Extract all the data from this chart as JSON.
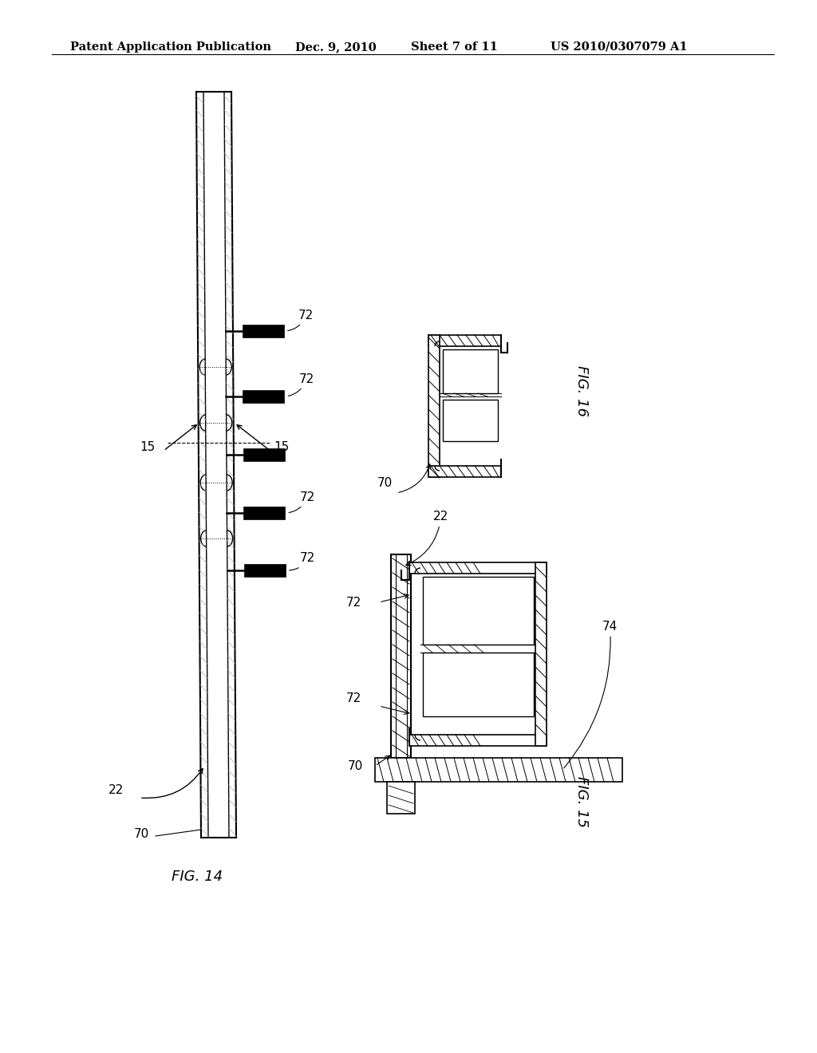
{
  "background_color": "#ffffff",
  "header_text": "Patent Application Publication",
  "header_date": "Dec. 9, 2010",
  "header_sheet": "Sheet 7 of 11",
  "header_patent": "US 2010/0307079 A1",
  "fig14_label": "FIG. 14",
  "fig15_label": "FIG. 15",
  "fig16_label": "FIG. 16"
}
